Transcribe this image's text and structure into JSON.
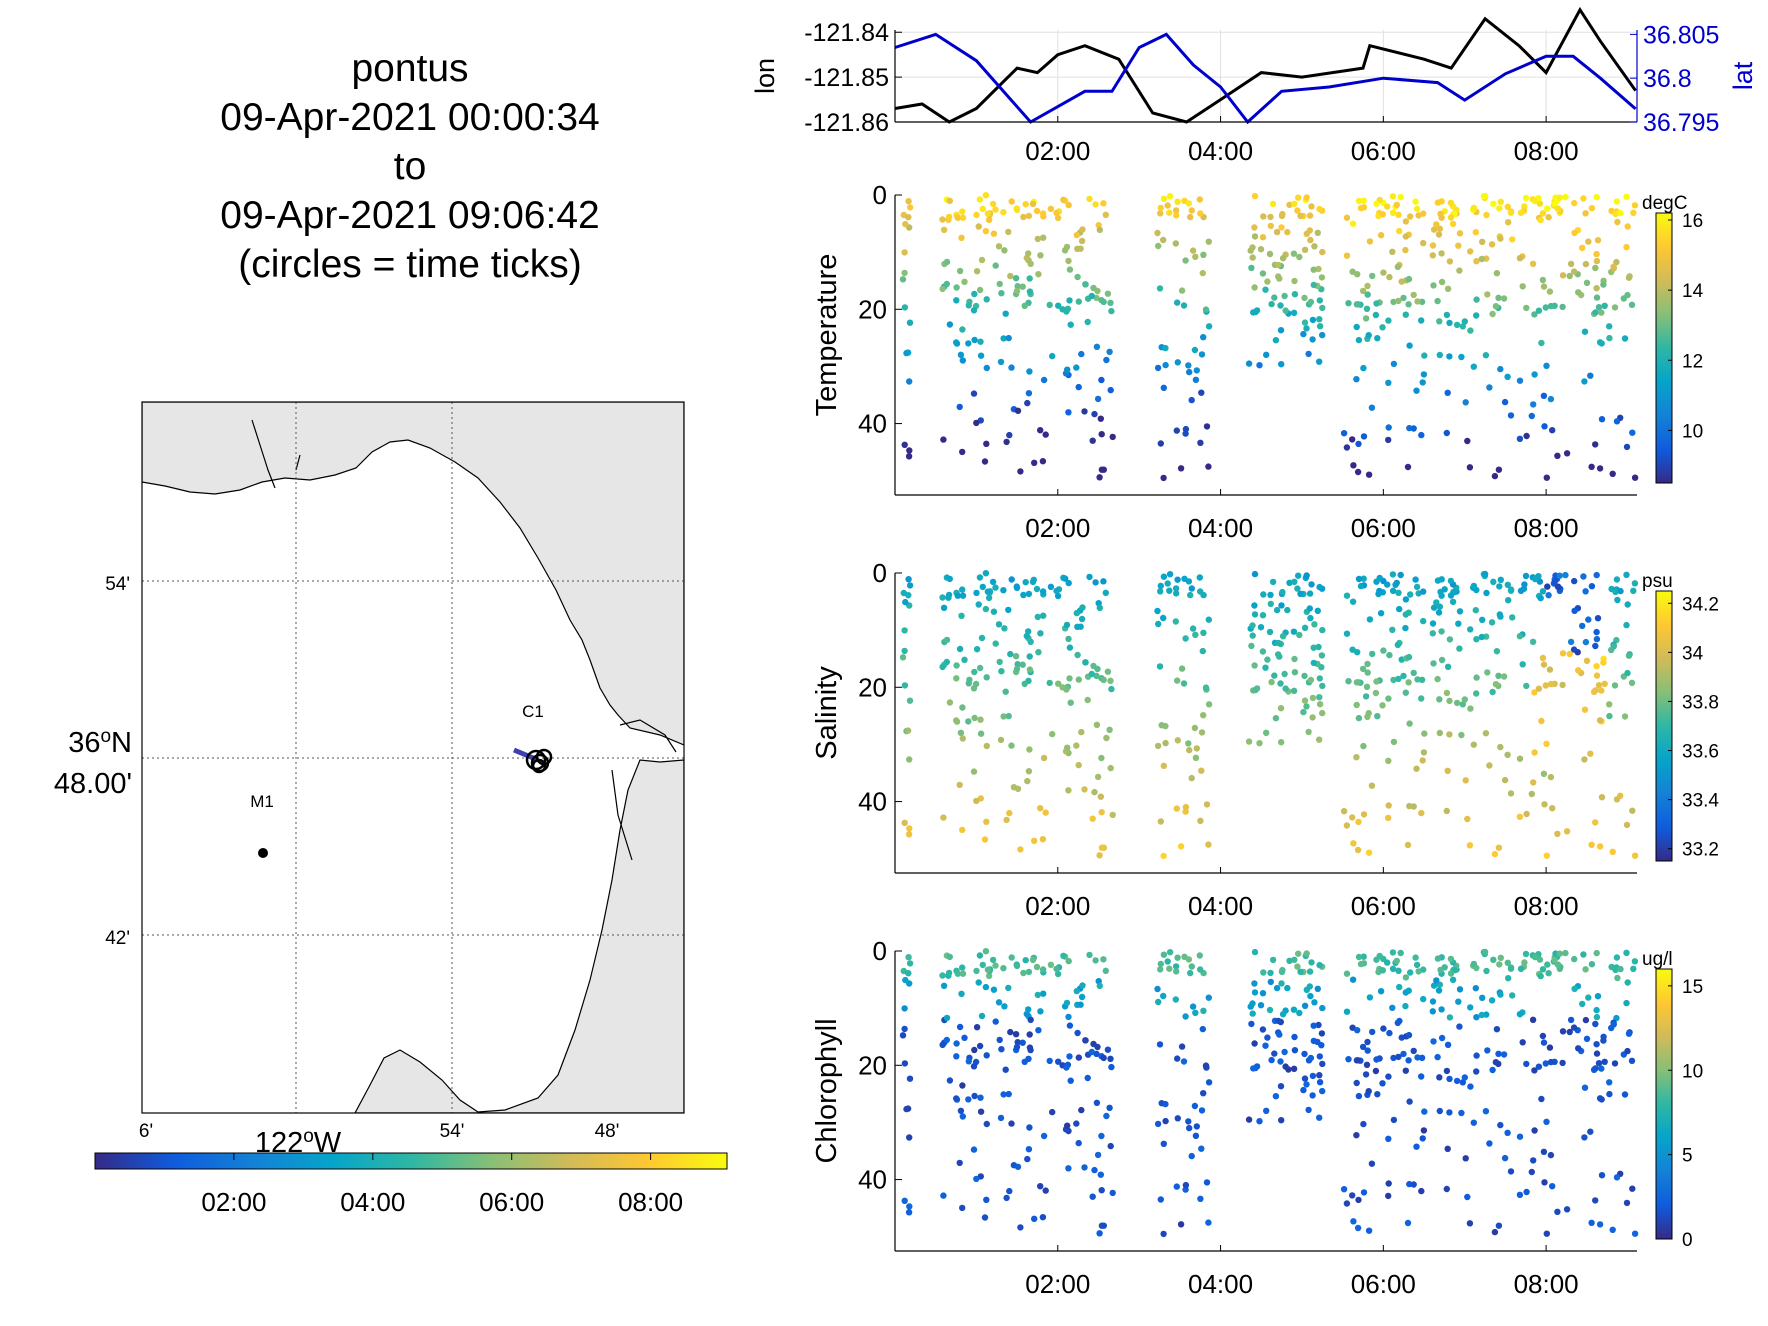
{
  "title_lines": [
    "pontus",
    "09-Apr-2021 00:00:34",
    "to",
    "09-Apr-2021 09:06:42",
    "(circles = time ticks)"
  ],
  "colors": {
    "parula": [
      "#352a87",
      "#0f5cdd",
      "#1481d6",
      "#06a4ca",
      "#2eb7a4",
      "#87bf77",
      "#d1bb59",
      "#fec832",
      "#f9fb0e"
    ],
    "lon_line": "#000000",
    "lat_line": "#0000cc",
    "land": "#e6e6e6",
    "track": "#3f3fb0"
  },
  "map": {
    "stations": [
      "C1",
      "M1"
    ],
    "lat_ticks": [
      "54'",
      "36°N 48.00'",
      "42'"
    ],
    "lon_ticks": [
      "6'",
      "122°W",
      "54'",
      "48'"
    ],
    "colorbar_ticks": [
      "02:00",
      "04:00",
      "06:00",
      "08:00"
    ]
  },
  "chart_data": [
    {
      "type": "line",
      "name": "lon-lat time series",
      "ylabel": "lon",
      "y2label": "lat",
      "x": [
        "00:00",
        "00:20",
        "00:40",
        "01:00",
        "01:20",
        "01:30",
        "01:45",
        "02:00",
        "02:20",
        "02:45",
        "03:10",
        "03:35",
        "04:00",
        "04:30",
        "05:00",
        "05:45",
        "05:50",
        "06:30",
        "06:50",
        "07:15",
        "07:40",
        "08:00",
        "08:25",
        "08:40",
        "09:06"
      ],
      "lon": [
        -121.857,
        -121.856,
        -121.86,
        -121.857,
        -121.851,
        -121.848,
        -121.849,
        -121.845,
        -121.843,
        -121.846,
        -121.858,
        -121.86,
        -121.855,
        -121.849,
        -121.85,
        -121.848,
        -121.843,
        -121.846,
        -121.848,
        -121.837,
        -121.843,
        -121.849,
        -121.835,
        -121.842,
        -121.853
      ],
      "x_lat": [
        "00:00",
        "00:30",
        "01:00",
        "01:40",
        "02:20",
        "02:40",
        "03:00",
        "03:20",
        "03:40",
        "04:00",
        "04:20",
        "04:45",
        "05:20",
        "06:00",
        "06:40",
        "07:00",
        "07:30",
        "08:00",
        "08:20",
        "08:40",
        "09:06"
      ],
      "lat": [
        36.8035,
        36.805,
        36.802,
        36.795,
        36.7985,
        36.7985,
        36.8035,
        36.805,
        36.8015,
        36.799,
        36.795,
        36.7985,
        36.799,
        36.8,
        36.7995,
        36.7975,
        36.8005,
        36.8025,
        36.8025,
        36.8,
        36.7965
      ],
      "yticks": [
        "-121.84",
        "-121.85",
        "-121.86"
      ],
      "y2ticks": [
        "36.805",
        "36.8",
        "36.795"
      ],
      "xticks": [
        "02:00",
        "04:00",
        "06:00",
        "08:00"
      ]
    },
    {
      "type": "scatter",
      "ylabel": "Temperature",
      "units": "degC",
      "ylim": [
        0,
        50
      ],
      "xticks": [
        "02:00",
        "04:00",
        "06:00",
        "08:00"
      ],
      "yticks": [
        "0",
        "20",
        "40"
      ],
      "cticks": [
        "16",
        "14",
        "12",
        "10"
      ],
      "clim": [
        8.5,
        16.2
      ]
    },
    {
      "type": "scatter",
      "ylabel": "Salinity",
      "units": "psu",
      "ylim": [
        0,
        50
      ],
      "xticks": [
        "02:00",
        "04:00",
        "06:00",
        "08:00"
      ],
      "yticks": [
        "0",
        "20",
        "40"
      ],
      "cticks": [
        "34.2",
        "34",
        "33.8",
        "33.6",
        "33.4",
        "33.2"
      ],
      "clim": [
        33.15,
        34.25
      ]
    },
    {
      "type": "scatter",
      "ylabel": "Chlorophyll",
      "units": "ug/l",
      "ylim": [
        0,
        50
      ],
      "xticks": [
        "02:00",
        "04:00",
        "06:00",
        "08:00"
      ],
      "yticks": [
        "0",
        "20",
        "40"
      ],
      "cticks": [
        "15",
        "10",
        "5",
        "0"
      ],
      "clim": [
        0,
        16
      ]
    }
  ]
}
